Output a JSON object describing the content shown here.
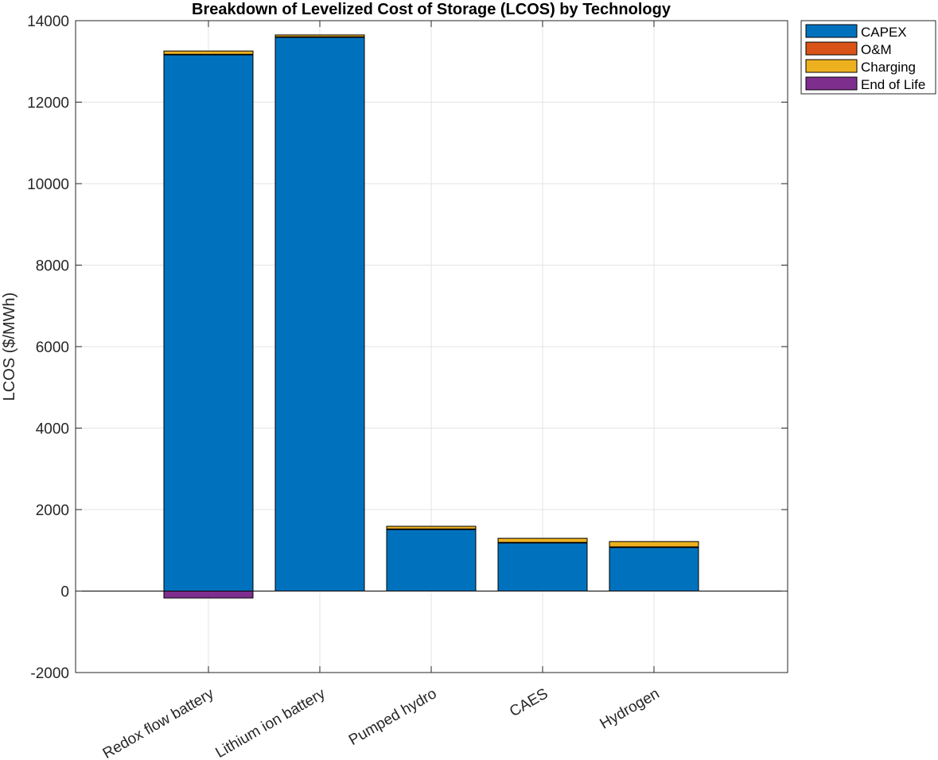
{
  "chart_data": {
    "type": "bar",
    "stacked": true,
    "title": "Breakdown of Levelized Cost of Storage (LCOS) by Technology",
    "xlabel": "",
    "ylabel": "LCOS ($/MWh)",
    "ylim": [
      -2000,
      14000
    ],
    "yticks": [
      -2000,
      0,
      2000,
      4000,
      6000,
      8000,
      10000,
      12000,
      14000
    ],
    "grid": true,
    "legend_position": "outside-top-right",
    "categories": [
      "Redox flow battery",
      "Lithium ion battery",
      "Pumped hydro",
      "CAES",
      "Hydrogen"
    ],
    "series": [
      {
        "name": "CAPEX",
        "color": "#0072BD",
        "values": [
          13160,
          13590,
          1510,
          1180,
          1070
        ]
      },
      {
        "name": "O&M",
        "color": "#D95319",
        "values": [
          15,
          15,
          15,
          15,
          15
        ]
      },
      {
        "name": "Charging",
        "color": "#EDB120",
        "values": [
          80,
          45,
          65,
          100,
          130
        ]
      },
      {
        "name": "End of Life",
        "color": "#7E2F8E",
        "values": [
          -170,
          0,
          0,
          0,
          0
        ]
      }
    ]
  }
}
